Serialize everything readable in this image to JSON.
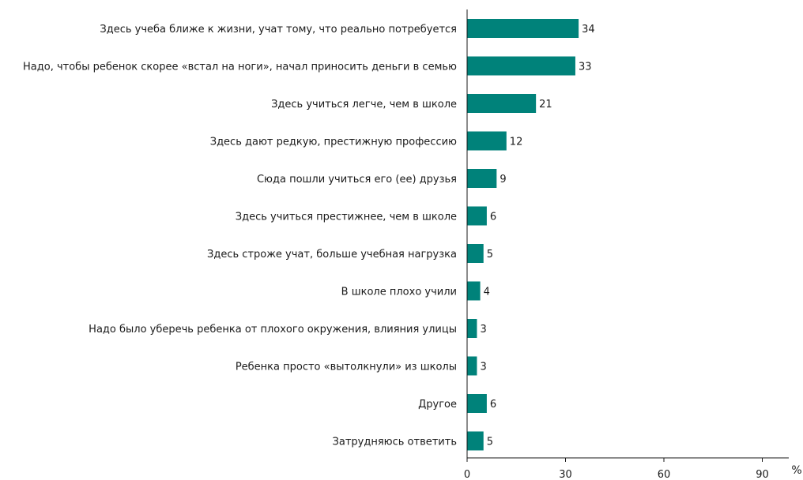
{
  "chart_data": {
    "type": "bar",
    "orientation": "horizontal",
    "categories": [
      "Здесь учеба ближе к жизни, учат тому, что реально потребуется",
      "Надо, чтобы ребенок скорее «встал на ноги», начал приносить деньги в семью",
      "Здесь учиться легче, чем в школе",
      "Здесь дают редкую, престижную профессию",
      "Сюда пошли учиться его (ее) друзья",
      "Здесь учиться престижнее, чем в школе",
      "Здесь строже учат, больше учебная нагрузка",
      "В школе плохо учили",
      "Надо было уберечь ребенка от плохого окружения, влияния улицы",
      "Ребенка просто «вытолкнули» из школы",
      "Другое",
      "Затрудняюсь ответить"
    ],
    "values": [
      34,
      33,
      21,
      12,
      9,
      6,
      5,
      4,
      3,
      3,
      6,
      5
    ],
    "value_labels": [
      "34",
      "33",
      "21",
      "12",
      "9",
      "6",
      "5",
      "4",
      "3",
      "3",
      "6",
      "5"
    ],
    "xlim": [
      0,
      100
    ],
    "xticks": [
      0,
      30,
      60,
      90
    ],
    "xtick_labels": [
      "0",
      "30",
      "60",
      "90"
    ],
    "unit_label": "%",
    "grid": false,
    "bar_color": "#00827a"
  }
}
